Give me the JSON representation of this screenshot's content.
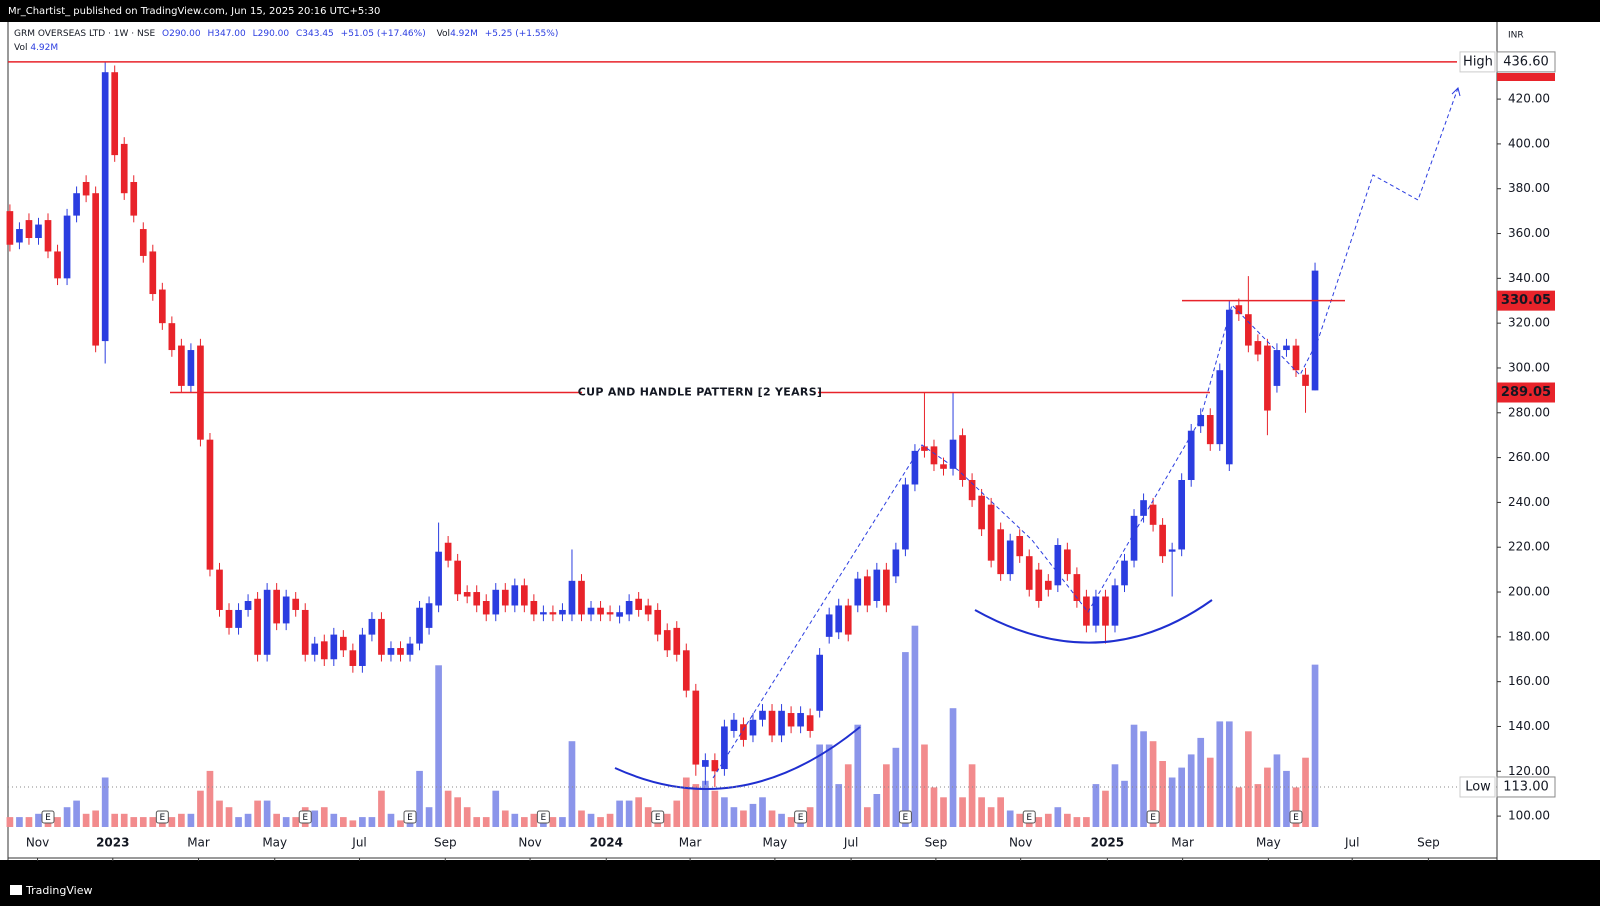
{
  "header": {
    "published": "Mr_Chartist_ published on TradingView.com, Jun 15, 2025 20:16 UTC+5:30",
    "footer": "TradingView"
  },
  "legend": {
    "symbol": "GRM OVERSEAS LTD · 1W · NSE",
    "open": "O290.00",
    "high": "H347.00",
    "low": "L290.00",
    "close": "C343.45",
    "change": "+51.05 (+17.46%)",
    "vol_label": "Vol",
    "vol_value": "4.92M",
    "vol_change": "+5.25 (+1.55%)"
  },
  "chart_data": {
    "type": "candlestick",
    "currency": "INR",
    "up_color": "#2b3de0",
    "down_color": "#e8232a",
    "volume_up_color": "#8b95ea",
    "volume_down_color": "#f28b8d",
    "xlim": [
      -0.2,
      156.1
    ],
    "ylim": [
      81.3,
      455.3
    ],
    "grid": false,
    "xticks": [
      {
        "value": 2.9,
        "label": "Nov"
      },
      {
        "value": 10.8,
        "label": "2023"
      },
      {
        "value": 19.8,
        "label": "Mar"
      },
      {
        "value": 27.8,
        "label": "May"
      },
      {
        "value": 36.7,
        "label": "Jul"
      },
      {
        "value": 45.7,
        "label": "Sep"
      },
      {
        "value": 54.6,
        "label": "Nov"
      },
      {
        "value": 62.6,
        "label": "2024"
      },
      {
        "value": 71.4,
        "label": "Mar"
      },
      {
        "value": 80.3,
        "label": "May"
      },
      {
        "value": 88.3,
        "label": "Jul"
      },
      {
        "value": 97.2,
        "label": "Sep"
      },
      {
        "value": 106.1,
        "label": "Nov"
      },
      {
        "value": 115.2,
        "label": "2025"
      },
      {
        "value": 123.1,
        "label": "Mar"
      },
      {
        "value": 132.1,
        "label": "May"
      },
      {
        "value": 140.9,
        "label": "Jul"
      },
      {
        "value": 148.9,
        "label": "Sep"
      }
    ],
    "yticks": [
      {
        "value": 100,
        "label": "100.00"
      },
      {
        "value": 120,
        "label": "120.00"
      },
      {
        "value": 140,
        "label": "140.00"
      },
      {
        "value": 160,
        "label": "160.00"
      },
      {
        "value": 180,
        "label": "180.00"
      },
      {
        "value": 200,
        "label": "200.00"
      },
      {
        "value": 220,
        "label": "220.00"
      },
      {
        "value": 240,
        "label": "240.00"
      },
      {
        "value": 260,
        "label": "260.00"
      },
      {
        "value": 280,
        "label": "280.00"
      },
      {
        "value": 300,
        "label": "300.00"
      },
      {
        "value": 320,
        "label": "320.00"
      },
      {
        "value": 340,
        "label": "340.00"
      },
      {
        "value": 360,
        "label": "360.00"
      },
      {
        "value": 380,
        "label": "380.00"
      },
      {
        "value": 400,
        "label": "400.00"
      },
      {
        "value": 420,
        "label": "420.00"
      }
    ],
    "open": [
      370,
      356,
      366,
      358,
      366,
      352,
      340,
      368,
      383,
      378,
      312,
      432,
      400,
      383,
      362,
      352,
      335,
      320,
      310,
      292,
      310,
      268,
      210,
      192,
      184,
      192,
      197,
      172,
      201,
      186,
      197,
      192,
      172,
      178,
      170,
      180,
      174,
      167,
      181,
      188,
      172,
      175,
      172,
      177,
      184,
      194,
      222,
      214,
      200,
      200,
      196,
      190,
      201,
      194,
      203,
      196,
      190,
      191,
      190,
      190,
      205,
      190,
      193,
      191,
      189,
      190,
      197,
      194,
      192,
      183,
      184,
      174,
      156,
      122,
      125,
      121,
      138,
      141,
      136,
      143,
      147,
      136,
      146,
      140,
      145,
      147,
      180,
      182,
      194,
      194,
      207,
      196,
      210,
      207,
      219,
      248,
      265,
      265,
      257,
      255,
      270,
      250,
      243,
      239,
      228,
      208,
      225,
      216,
      210,
      205,
      203,
      219,
      208,
      198,
      185,
      198,
      185,
      203,
      214,
      234,
      239,
      230,
      218,
      219,
      250,
      274,
      279,
      266,
      257,
      328,
      324,
      312,
      310,
      292,
      308,
      310,
      297,
      290
    ],
    "high": [
      373,
      365,
      369,
      367,
      369,
      355,
      371,
      381,
      386,
      381,
      436.6,
      435,
      403,
      386,
      365,
      355,
      338,
      323,
      313,
      311,
      313,
      271,
      213,
      195,
      195,
      199,
      200,
      204,
      204,
      201,
      200,
      195,
      180,
      181,
      184,
      183,
      177,
      184,
      191,
      191,
      178,
      178,
      180,
      196,
      198,
      231,
      225,
      217,
      203,
      203,
      199,
      204,
      204,
      206,
      206,
      199,
      194,
      194,
      195,
      219,
      208,
      196,
      196,
      194,
      194,
      199,
      200,
      197,
      195,
      186,
      187,
      177,
      159,
      128,
      128,
      143,
      146,
      144,
      146,
      150,
      150,
      150,
      149,
      149,
      148,
      175,
      193,
      197,
      197,
      209,
      210,
      213,
      213,
      222,
      251,
      266,
      289,
      268,
      260,
      289,
      273,
      253,
      246,
      242,
      231,
      226,
      228,
      219,
      213,
      208,
      224,
      222,
      211,
      201,
      201,
      201,
      206,
      217,
      237,
      244,
      242,
      233,
      222,
      253,
      275,
      282,
      282,
      302,
      330,
      331,
      341,
      315,
      313,
      311,
      313,
      313,
      300,
      347
    ],
    "low": [
      352,
      353,
      355,
      355,
      349,
      337,
      337,
      365,
      374,
      307,
      302,
      392,
      375,
      365,
      347,
      330,
      317,
      305,
      289,
      289,
      265,
      207,
      189,
      181,
      181,
      189,
      169,
      169,
      183,
      183,
      189,
      169,
      169,
      167,
      167,
      171,
      164,
      164,
      178,
      169,
      169,
      169,
      169,
      174,
      181,
      191,
      211,
      196,
      195,
      191,
      187,
      187,
      191,
      191,
      191,
      187,
      187,
      187,
      187,
      187,
      187,
      187,
      187,
      187,
      186,
      187,
      189,
      187,
      178,
      171,
      169,
      153,
      118,
      114,
      113,
      118,
      135,
      131,
      133,
      140,
      133,
      133,
      137,
      137,
      135,
      144,
      177,
      179,
      178,
      191,
      191,
      193,
      191,
      204,
      216,
      245,
      260,
      254,
      252,
      252,
      247,
      238,
      225,
      211,
      205,
      205,
      213,
      198,
      193,
      198,
      200,
      205,
      193,
      182,
      182,
      177,
      182,
      200,
      211,
      231,
      227,
      213,
      198,
      216,
      247,
      271,
      263,
      263,
      254,
      321,
      307,
      303,
      270,
      289,
      305,
      296,
      280,
      290
    ],
    "close": [
      355,
      362,
      358,
      364,
      352,
      340,
      368,
      378,
      377,
      310,
      432,
      395,
      378,
      368,
      350,
      333,
      320,
      308,
      292,
      308,
      268,
      210,
      192,
      184,
      192,
      196,
      172,
      201,
      186,
      198,
      192,
      172,
      177,
      170,
      181,
      174,
      167,
      181,
      188,
      172,
      175,
      172,
      177,
      193,
      195,
      218,
      214,
      199,
      198,
      194,
      190,
      201,
      194,
      203,
      194,
      190,
      191,
      190,
      192,
      205,
      190,
      193,
      190,
      190,
      191,
      196,
      192,
      190,
      181,
      174,
      172,
      156,
      123,
      125,
      120,
      140,
      143,
      134,
      143,
      147,
      136,
      147,
      140,
      146,
      138,
      172,
      190,
      194,
      181,
      206,
      194,
      210,
      194,
      219,
      248,
      263,
      263,
      257,
      255,
      268,
      250,
      241,
      228,
      214,
      208,
      223,
      216,
      201,
      196,
      201,
      221,
      208,
      196,
      185,
      198,
      185,
      203,
      214,
      234,
      241,
      230,
      216,
      219,
      250,
      272,
      279,
      266,
      299,
      326,
      324,
      310,
      306,
      281,
      308,
      310,
      299,
      292,
      343.45
    ],
    "volume": [
      0.3,
      0.3,
      0.3,
      0.4,
      0.5,
      0.3,
      0.6,
      0.8,
      0.4,
      0.5,
      1.5,
      0.4,
      0.4,
      0.3,
      0.3,
      0.3,
      0.4,
      0.3,
      0.4,
      0.4,
      1.1,
      1.7,
      0.8,
      0.6,
      0.3,
      0.4,
      0.8,
      0.8,
      0.4,
      0.3,
      0.3,
      0.6,
      0.5,
      0.6,
      0.4,
      0.3,
      0.2,
      0.3,
      0.3,
      1.1,
      0.4,
      0.2,
      0.3,
      1.7,
      0.6,
      4.9,
      1.1,
      0.9,
      0.6,
      0.3,
      0.3,
      1.1,
      0.5,
      0.4,
      0.3,
      0.4,
      0.2,
      0.3,
      0.3,
      2.6,
      0.5,
      0.4,
      0.3,
      0.4,
      0.8,
      0.8,
      0.9,
      0.6,
      0.3,
      0.4,
      0.8,
      1.5,
      1.3,
      1.4,
      1.1,
      0.9,
      0.6,
      0.5,
      0.7,
      0.9,
      0.5,
      0.4,
      0.3,
      0.4,
      0.6,
      2.5,
      2.5,
      1.3,
      1.9,
      3.1,
      0.6,
      1.0,
      1.9,
      2.4,
      5.3,
      6.1,
      2.5,
      1.2,
      0.9,
      3.6,
      0.9,
      1.9,
      0.9,
      0.6,
      0.9,
      0.5,
      0.4,
      0.3,
      0.3,
      0.4,
      0.6,
      0.4,
      0.3,
      0.3,
      1.3,
      1.1,
      1.9,
      1.4,
      3.1,
      2.9,
      2.6,
      2.0,
      1.5,
      1.8,
      2.2,
      2.7,
      2.1,
      3.2,
      3.2,
      1.2,
      2.9,
      1.3,
      1.8,
      2.2,
      1.7,
      1.2,
      2.1,
      4.92
    ],
    "earnings": {
      "label": "E",
      "at": [
        4,
        16,
        31,
        42,
        56,
        68,
        83,
        94,
        107,
        120,
        135
      ]
    },
    "levels": [
      {
        "value": 436.6,
        "label": "436.60",
        "tag": "High"
      },
      {
        "value": 330.05,
        "label": "330.05"
      },
      {
        "value": 289.05,
        "label": "289.05",
        "note": "CUP AND HANDLE PATTERN [2 YEARS]"
      },
      {
        "value": 113,
        "label": "113.00",
        "tag": "Low"
      }
    ]
  }
}
